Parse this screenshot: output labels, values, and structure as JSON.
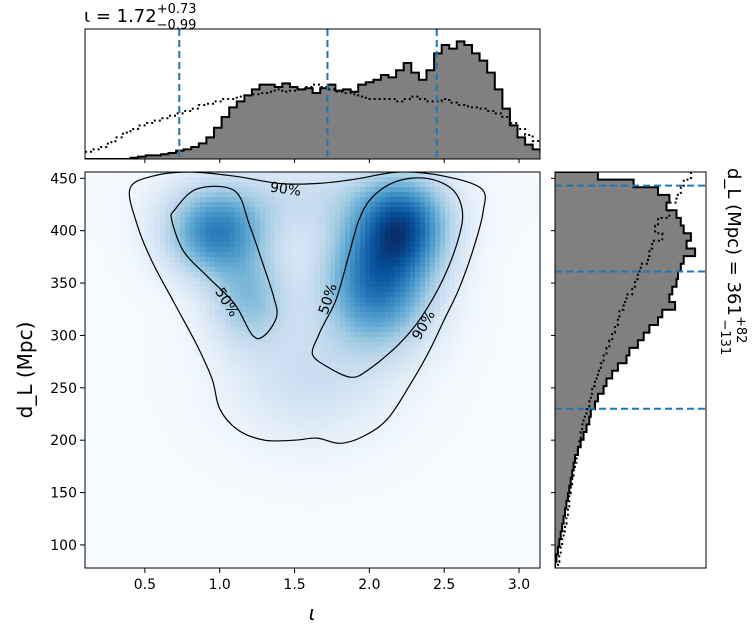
{
  "chart_data": {
    "type": "corner",
    "top_title": {
      "base": "ι = 1.72",
      "sup": "+0.73",
      "sub": "−0.99"
    },
    "right_title": {
      "base": "d_L (Mpc) = 361",
      "sup": "+82",
      "sub": "−131"
    },
    "xlabel": "ι",
    "ylabel": "d_L (Mpc)",
    "xlim": [
      0.1,
      3.14
    ],
    "ylim": [
      78,
      456
    ],
    "xticks": [
      0.5,
      1.0,
      1.5,
      2.0,
      2.5,
      3.0
    ],
    "xtick_labels": [
      "0.5",
      "1.0",
      "1.5",
      "2.0",
      "2.5",
      "3.0"
    ],
    "yticks": [
      100,
      150,
      200,
      250,
      300,
      350,
      400,
      450
    ],
    "ytick_labels": [
      "100",
      "150",
      "200",
      "250",
      "300",
      "350",
      "400",
      "450"
    ],
    "colors": {
      "hist_fill": "#808080",
      "quantile_line": "#1f77b4",
      "density": "Blues"
    },
    "iota_quantiles": [
      0.73,
      1.72,
      2.45
    ],
    "dl_quantiles": [
      230,
      361,
      443
    ],
    "iota_hist": {
      "edges_start": 0.1,
      "bin_width": 0.0507,
      "posterior": [
        0.0,
        0.0,
        0.0,
        0.0,
        0.0,
        0.0,
        0.01,
        0.02,
        0.03,
        0.03,
        0.04,
        0.05,
        0.07,
        0.08,
        0.1,
        0.13,
        0.18,
        0.26,
        0.35,
        0.43,
        0.48,
        0.53,
        0.58,
        0.62,
        0.62,
        0.6,
        0.63,
        0.6,
        0.58,
        0.59,
        0.55,
        0.59,
        0.62,
        0.57,
        0.58,
        0.56,
        0.62,
        0.64,
        0.66,
        0.7,
        0.68,
        0.74,
        0.8,
        0.72,
        0.66,
        0.74,
        0.88,
        0.95,
        0.92,
        0.98,
        0.95,
        0.88,
        0.82,
        0.72,
        0.58,
        0.42,
        0.28,
        0.18,
        0.12,
        0.08,
        0.06,
        0.05
      ]
    },
    "iota_prior": [
      0.06,
      0.08,
      0.1,
      0.14,
      0.18,
      0.22,
      0.25,
      0.28,
      0.3,
      0.32,
      0.34,
      0.36,
      0.38,
      0.4,
      0.42,
      0.45,
      0.46,
      0.48,
      0.5,
      0.5,
      0.52,
      0.53,
      0.54,
      0.55,
      0.56,
      0.58,
      0.56,
      0.57,
      0.58,
      0.6,
      0.62,
      0.6,
      0.58,
      0.56,
      0.55,
      0.54,
      0.52,
      0.5,
      0.5,
      0.5,
      0.5,
      0.48,
      0.5,
      0.52,
      0.5,
      0.48,
      0.48,
      0.5,
      0.47,
      0.45,
      0.44,
      0.43,
      0.42,
      0.4,
      0.38,
      0.35,
      0.3,
      0.25,
      0.2,
      0.15,
      0.12,
      0.09
    ],
    "dl_hist": {
      "edges_start": 456,
      "bin_width": -7.3,
      "posterior": [
        0.3,
        0.55,
        0.72,
        0.8,
        0.78,
        0.85,
        0.88,
        0.9,
        0.95,
        0.92,
        0.98,
        0.9,
        0.88,
        0.86,
        0.85,
        0.82,
        0.8,
        0.84,
        0.75,
        0.72,
        0.66,
        0.62,
        0.58,
        0.52,
        0.5,
        0.44,
        0.4,
        0.36,
        0.34,
        0.3,
        0.28,
        0.25,
        0.24,
        0.22,
        0.2,
        0.18,
        0.16,
        0.14,
        0.13,
        0.12,
        0.11,
        0.1,
        0.09,
        0.08,
        0.07,
        0.06,
        0.05,
        0.04,
        0.03,
        0.02,
        0.01,
        0.0
      ]
    },
    "dl_prior": [
      0.95,
      0.9,
      0.88,
      0.85,
      0.78,
      0.8,
      0.72,
      0.7,
      0.75,
      0.68,
      0.66,
      0.65,
      0.6,
      0.58,
      0.56,
      0.54,
      0.5,
      0.48,
      0.45,
      0.44,
      0.42,
      0.4,
      0.38,
      0.36,
      0.34,
      0.32,
      0.3,
      0.28,
      0.26,
      0.25,
      0.24,
      0.22,
      0.2,
      0.19,
      0.18,
      0.17,
      0.16,
      0.15,
      0.14,
      0.13,
      0.12,
      0.11,
      0.1,
      0.1,
      0.09,
      0.08,
      0.07,
      0.06,
      0.05,
      0.04,
      0.03,
      0.02
    ],
    "density_blobs": [
      {
        "x": 0.98,
        "y": 398,
        "sx": 0.22,
        "sy": 28,
        "w": 0.85
      },
      {
        "x": 1.2,
        "y": 335,
        "sx": 0.18,
        "sy": 30,
        "w": 0.45
      },
      {
        "x": 2.22,
        "y": 405,
        "sx": 0.2,
        "sy": 30,
        "w": 1.0
      },
      {
        "x": 2.05,
        "y": 350,
        "sx": 0.24,
        "sy": 40,
        "w": 0.95
      },
      {
        "x": 1.6,
        "y": 260,
        "sx": 0.35,
        "sy": 40,
        "w": 0.2
      },
      {
        "x": 1.6,
        "y": 430,
        "sx": 0.5,
        "sy": 25,
        "w": 0.2
      }
    ],
    "contours": [
      {
        "level": "50%",
        "points": [
          [
            0.7,
            420
          ],
          [
            0.85,
            440
          ],
          [
            1.1,
            438
          ],
          [
            1.2,
            405
          ],
          [
            1.28,
            372
          ],
          [
            1.36,
            337
          ],
          [
            1.38,
            318
          ],
          [
            1.3,
            300
          ],
          [
            1.22,
            300
          ],
          [
            1.1,
            330
          ],
          [
            0.92,
            356
          ],
          [
            0.76,
            380
          ],
          [
            0.68,
            410
          ],
          [
            0.7,
            420
          ]
        ]
      },
      {
        "level": "50%",
        "points": [
          [
            1.66,
            300
          ],
          [
            1.62,
            282
          ],
          [
            1.72,
            270
          ],
          [
            1.88,
            260
          ],
          [
            2.0,
            268
          ],
          [
            2.2,
            292
          ],
          [
            2.35,
            318
          ],
          [
            2.5,
            356
          ],
          [
            2.6,
            395
          ],
          [
            2.62,
            420
          ],
          [
            2.55,
            440
          ],
          [
            2.38,
            450
          ],
          [
            2.18,
            447
          ],
          [
            2.02,
            432
          ],
          [
            1.93,
            410
          ],
          [
            1.86,
            375
          ],
          [
            1.78,
            335
          ],
          [
            1.7,
            312
          ],
          [
            1.66,
            300
          ]
        ]
      },
      {
        "level": "90%",
        "points": [
          [
            0.4,
            440
          ],
          [
            0.55,
            452
          ],
          [
            0.8,
            456
          ],
          [
            1.1,
            452
          ],
          [
            1.4,
            445
          ],
          [
            1.65,
            445
          ],
          [
            1.9,
            449
          ],
          [
            2.2,
            456
          ],
          [
            2.5,
            452
          ],
          [
            2.75,
            440
          ],
          [
            2.76,
            418
          ],
          [
            2.7,
            385
          ],
          [
            2.6,
            345
          ],
          [
            2.5,
            315
          ],
          [
            2.4,
            285
          ],
          [
            2.28,
            255
          ],
          [
            2.12,
            220
          ],
          [
            1.95,
            203
          ],
          [
            1.8,
            197
          ],
          [
            1.65,
            202
          ],
          [
            1.5,
            200
          ],
          [
            1.3,
            200
          ],
          [
            1.12,
            210
          ],
          [
            1.0,
            230
          ],
          [
            0.95,
            258
          ],
          [
            0.85,
            290
          ],
          [
            0.7,
            330
          ],
          [
            0.55,
            370
          ],
          [
            0.45,
            405
          ],
          [
            0.4,
            440
          ]
        ]
      }
    ],
    "contour_labels": [
      {
        "text": "90%",
        "x": 1.44,
        "y": 440,
        "rotate": 8
      },
      {
        "text": "50%",
        "x": 1.05,
        "y": 332,
        "rotate": 58
      },
      {
        "text": "50%",
        "x": 1.72,
        "y": 335,
        "rotate": -72
      },
      {
        "text": "90%",
        "x": 2.36,
        "y": 310,
        "rotate": -60
      }
    ]
  }
}
